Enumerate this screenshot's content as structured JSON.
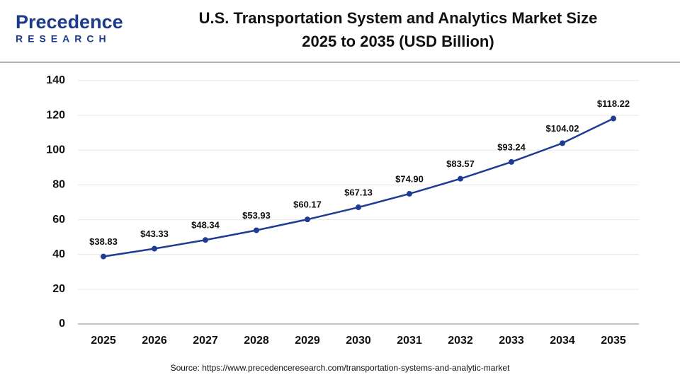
{
  "logo": {
    "name": "Precedence",
    "tagline": "RESEARCH"
  },
  "chart_data": {
    "type": "line",
    "title": "U.S. Transportation System and Analytics Market Size",
    "subtitle": "2025 to 2035 (USD Billion)",
    "categories": [
      "2025",
      "2026",
      "2027",
      "2028",
      "2029",
      "2030",
      "2031",
      "2032",
      "2033",
      "2034",
      "2035"
    ],
    "values": [
      38.83,
      43.33,
      48.34,
      53.93,
      60.17,
      67.13,
      74.9,
      83.57,
      93.24,
      104.02,
      118.22
    ],
    "value_labels": [
      "$38.83",
      "$43.33",
      "$48.34",
      "$53.93",
      "$60.17",
      "$67.13",
      "$74.90",
      "$83.57",
      "$93.24",
      "$104.02",
      "$118.22"
    ],
    "color": "#1f3c94",
    "ylim": [
      0,
      140
    ],
    "yticks": [
      0,
      20,
      40,
      60,
      80,
      100,
      120,
      140
    ],
    "grid": true,
    "source": "Source: https://www.precedenceresearch.com/transportation-systems-and-analytic-market"
  }
}
